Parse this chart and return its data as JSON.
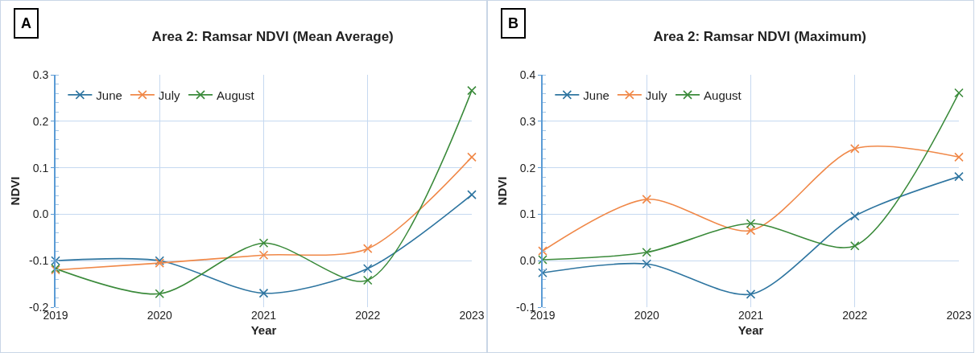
{
  "chart_data": [
    {
      "type": "line",
      "title": "Area 2: Ramsar NDVI (Mean Average)",
      "annotations": [
        "A"
      ],
      "xlabel": "Year",
      "ylabel": "NDVI",
      "x": [
        2019,
        2020,
        2021,
        2022,
        2023
      ],
      "xlim": [
        2019,
        2023
      ],
      "xticks": [
        2019,
        2020,
        2021,
        2022,
        2023
      ],
      "ylim": [
        -0.2,
        0.3
      ],
      "yticks": [
        {
          "value": -0.2,
          "label": "-0.2"
        },
        {
          "value": -0.1,
          "label": "-0.1"
        },
        {
          "value": 0,
          "label": "0.0"
        },
        {
          "value": 0.1,
          "label": "0.1"
        },
        {
          "value": 0.2,
          "label": "0.2"
        },
        {
          "value": 0.3,
          "label": "0.3"
        }
      ],
      "grid": true,
      "legend": "top left",
      "marker": "cross",
      "line_style": "solid",
      "series": [
        {
          "name": "June",
          "color": "#2e75a0",
          "values": [
            -0.1,
            -0.1,
            -0.17,
            -0.117,
            0.042
          ]
        },
        {
          "name": "July",
          "color": "#f08848",
          "values": [
            -0.12,
            -0.105,
            -0.088,
            -0.074,
            0.123
          ]
        },
        {
          "name": "August",
          "color": "#3a8a3a",
          "values": [
            -0.117,
            -0.171,
            -0.062,
            -0.142,
            0.266
          ]
        }
      ]
    },
    {
      "type": "line",
      "title": "Area 2: Ramsar NDVI (Maximum)",
      "annotations": [
        "B"
      ],
      "xlabel": "Year",
      "ylabel": "NDVI",
      "x": [
        2019,
        2020,
        2021,
        2022,
        2023
      ],
      "xlim": [
        2019,
        2023
      ],
      "xticks": [
        2019,
        2020,
        2021,
        2022,
        2023
      ],
      "ylim": [
        -0.1,
        0.4
      ],
      "yticks": [
        {
          "value": -0.1,
          "label": "-0.1"
        },
        {
          "value": 0,
          "label": "0.0"
        },
        {
          "value": 0.1,
          "label": "0.1"
        },
        {
          "value": 0.2,
          "label": "0.2"
        },
        {
          "value": 0.3,
          "label": "0.3"
        },
        {
          "value": 0.4,
          "label": "0.4"
        }
      ],
      "grid": true,
      "legend": "top left",
      "marker": "cross",
      "line_style": "solid",
      "series": [
        {
          "name": "June",
          "color": "#2e75a0",
          "values": [
            -0.026,
            -0.007,
            -0.072,
            0.096,
            0.181
          ]
        },
        {
          "name": "July",
          "color": "#f08848",
          "values": [
            0.021,
            0.132,
            0.065,
            0.241,
            0.223
          ]
        },
        {
          "name": "August",
          "color": "#3a8a3a",
          "values": [
            0.002,
            0.018,
            0.08,
            0.032,
            0.361
          ]
        }
      ]
    }
  ]
}
